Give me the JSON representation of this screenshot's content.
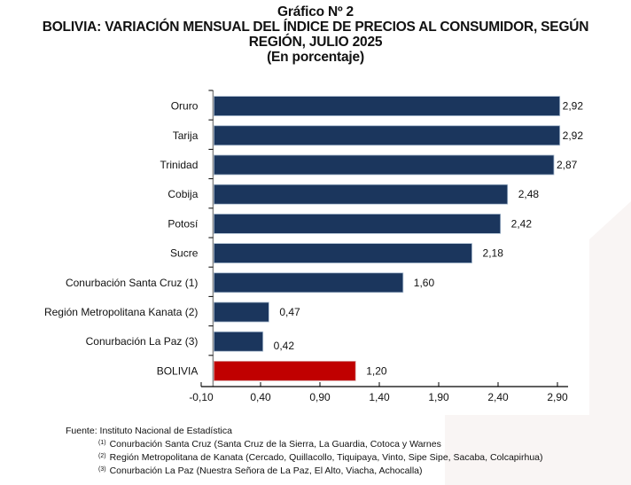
{
  "titles": {
    "line1": "Gráfico Nº 2",
    "line2": "BOLIVIA: VARIACIÓN MENSUAL DEL ÍNDICE DE PRECIOS AL CONSUMIDOR, SEGÚN",
    "line3": "REGIÓN, JULIO 2025",
    "line4": "(En porcentaje)"
  },
  "colors": {
    "bar": "#1b365d",
    "bar_highlight": "#c00000",
    "bar_edge": "#a9bcd0",
    "axis": "#000000"
  },
  "chart_data": {
    "type": "bar",
    "orientation": "horizontal",
    "title": "BOLIVIA: VARIACIÓN MENSUAL DEL ÍNDICE DE PRECIOS AL CONSUMIDOR, SEGÚN REGIÓN, JULIO 2025",
    "subtitle": "(En porcentaje)",
    "xlabel": "",
    "ylabel": "",
    "categories": [
      "Oruro",
      "Tarija",
      "Trinidad",
      "Cobija",
      "Potosí",
      "Sucre",
      "Conurbación Santa Cruz (1)",
      "Región Metropolitana Kanata (2)",
      "Conurbación La Paz (3)",
      "BOLIVIA"
    ],
    "values": [
      2.92,
      2.92,
      2.87,
      2.48,
      2.42,
      2.18,
      1.6,
      0.47,
      0.42,
      1.2
    ],
    "value_labels": [
      "2,92",
      "2,92",
      "2,87",
      "2,48",
      "2,42",
      "2,18",
      "1,60",
      "0,47",
      "0,42",
      "1,20"
    ],
    "highlight": [
      "BOLIVIA"
    ],
    "xlim": [
      -0.1,
      2.9
    ],
    "xticks": [
      -0.1,
      0.4,
      0.9,
      1.4,
      1.9,
      2.4,
      2.9
    ],
    "xtick_labels": [
      "-0,10",
      "0,40",
      "0,90",
      "1,40",
      "1,90",
      "2,40",
      "2,90"
    ],
    "grid": false,
    "legend": "none"
  },
  "notes": {
    "source": "Fuente: Instituto Nacional de Estadística",
    "items": [
      {
        "mark": "(1)",
        "text": "Conurbación Santa Cruz (Santa Cruz de la Sierra, La Guardia, Cotoca y Warnes"
      },
      {
        "mark": "(2)",
        "text": "Región Metropolitana de Kanata (Cercado, Quillacollo, Tiquipaya, Vinto, Sipe Sipe, Sacaba, Colcapirhua)"
      },
      {
        "mark": "(3)",
        "text": "Conurbación La Paz (Nuestra Señora de La Paz, El Alto, Viacha, Achocalla)"
      }
    ]
  }
}
